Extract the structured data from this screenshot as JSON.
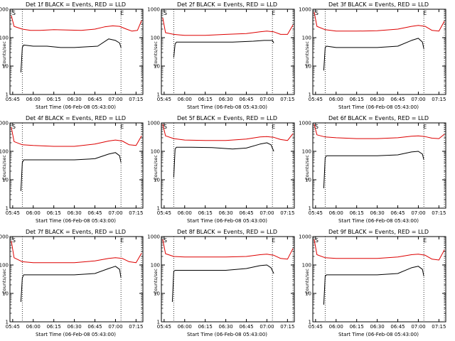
{
  "colors": {
    "events": "#000000",
    "lld": "#dd0000",
    "axes": "#000000"
  },
  "chart_data": [
    {
      "type": "line",
      "title": "Det 1f BLACK = Events, RED = LLD",
      "xlabel": "Start Time (06-Feb-08 05:43:00)",
      "ylabel": "Counts/sec",
      "xlim": [
        "05:43",
        "07:20"
      ],
      "ylim": [
        1,
        1000
      ],
      "yscale": "log",
      "x_tick_labels": [
        "05:45",
        "06:00",
        "06:15",
        "06:30",
        "06:45",
        "07:00",
        "07:15"
      ],
      "y_tick_labels": [
        "1",
        "10",
        "100",
        "1000"
      ],
      "markers": [
        {
          "label": "S",
          "x": "05:45"
        },
        {
          "label": "E",
          "x": "07:04"
        }
      ],
      "dotted_lines_at": [
        "05:52",
        "07:04",
        "07:19"
      ],
      "series": [
        {
          "x": [
            "05:44",
            "05:46",
            "05:52",
            "05:58",
            "06:05",
            "06:15",
            "06:25",
            "06:35",
            "06:45",
            "06:52",
            "06:58",
            "07:03",
            "07:08",
            "07:12",
            "07:16",
            "07:19"
          ],
          "values": [
            600,
            250,
            200,
            180,
            180,
            190,
            185,
            180,
            200,
            240,
            260,
            250,
            200,
            170,
            180,
            400
          ]
        },
        {
          "x": [
            "05:51",
            "05:52",
            "05:53",
            "06:00",
            "06:10",
            "06:20",
            "06:30",
            "06:40",
            "06:47",
            "06:55",
            "07:00",
            "07:03",
            "07:04"
          ],
          "values": [
            6,
            45,
            55,
            50,
            50,
            45,
            45,
            48,
            50,
            90,
            80,
            65,
            45
          ]
        }
      ]
    },
    {
      "type": "line",
      "title": "Det 2f BLACK = Events, RED = LLD",
      "xlabel": "Start Time (06-Feb-08 05:43:00)",
      "ylabel": "Counts/sec",
      "xlim": [
        "05:43",
        "07:20"
      ],
      "ylim": [
        1,
        1000
      ],
      "yscale": "log",
      "x_tick_labels": [
        "05:45",
        "06:00",
        "06:15",
        "06:30",
        "06:45",
        "07:00",
        "07:15"
      ],
      "y_tick_labels": [
        "1",
        "10",
        "100",
        "1000"
      ],
      "markers": [
        {
          "label": "S",
          "x": "05:45"
        },
        {
          "label": "E",
          "x": "07:04"
        }
      ],
      "dotted_lines_at": [
        "05:52",
        "07:04",
        "07:19"
      ],
      "series": [
        {
          "x": [
            "05:44",
            "05:46",
            "05:52",
            "06:00",
            "06:15",
            "06:30",
            "06:45",
            "06:55",
            "07:00",
            "07:05",
            "07:10",
            "07:15",
            "07:19"
          ],
          "values": [
            500,
            150,
            130,
            120,
            120,
            130,
            140,
            160,
            170,
            160,
            130,
            130,
            280
          ]
        },
        {
          "x": [
            "05:52",
            "05:53",
            "05:54",
            "06:05",
            "06:20",
            "06:35",
            "06:50",
            "06:58",
            "07:02",
            "07:04",
            "07:05"
          ],
          "values": [
            20,
            60,
            70,
            70,
            70,
            70,
            75,
            80,
            80,
            80,
            65
          ]
        }
      ]
    },
    {
      "type": "line",
      "title": "Det 3f BLACK = Events, RED = LLD",
      "xlabel": "Start Time (06-Feb-08 05:43:00)",
      "ylabel": "Counts/sec",
      "xlim": [
        "05:43",
        "07:20"
      ],
      "ylim": [
        1,
        1000
      ],
      "yscale": "log",
      "x_tick_labels": [
        "05:45",
        "06:00",
        "06:15",
        "06:30",
        "06:45",
        "07:00",
        "07:15"
      ],
      "y_tick_labels": [
        "1",
        "10",
        "100",
        "1000"
      ],
      "markers": [
        {
          "label": "S",
          "x": "05:45"
        },
        {
          "label": "E",
          "x": "07:04"
        }
      ],
      "dotted_lines_at": [
        "05:52",
        "07:04",
        "07:19"
      ],
      "series": [
        {
          "x": [
            "05:44",
            "05:46",
            "05:52",
            "06:00",
            "06:15",
            "06:30",
            "06:45",
            "06:55",
            "07:00",
            "07:05",
            "07:10",
            "07:15",
            "07:19"
          ],
          "values": [
            800,
            250,
            190,
            170,
            170,
            175,
            200,
            250,
            270,
            250,
            180,
            170,
            380
          ]
        },
        {
          "x": [
            "05:51",
            "05:52",
            "05:53",
            "06:00",
            "06:15",
            "06:30",
            "06:45",
            "06:55",
            "07:00",
            "07:03",
            "07:04"
          ],
          "values": [
            7,
            45,
            50,
            45,
            45,
            45,
            50,
            80,
            95,
            70,
            40
          ]
        }
      ]
    },
    {
      "type": "line",
      "title": "Det 4f BLACK = Events, RED = LLD",
      "xlabel": "Start Time (06-Feb-08 05:43:00)",
      "ylabel": "Counts/sec",
      "xlim": [
        "05:43",
        "07:20"
      ],
      "ylim": [
        1,
        1000
      ],
      "yscale": "log",
      "x_tick_labels": [
        "05:45",
        "06:00",
        "06:15",
        "06:30",
        "06:45",
        "07:00",
        "07:15"
      ],
      "y_tick_labels": [
        "1",
        "10",
        "100",
        "1000"
      ],
      "markers": [
        {
          "label": "S",
          "x": "05:45"
        },
        {
          "label": "E",
          "x": "07:04"
        }
      ],
      "dotted_lines_at": [
        "05:52",
        "07:04",
        "07:19"
      ],
      "series": [
        {
          "x": [
            "05:44",
            "05:46",
            "05:52",
            "06:00",
            "06:15",
            "06:30",
            "06:45",
            "06:55",
            "07:00",
            "07:05",
            "07:10",
            "07:15",
            "07:19"
          ],
          "values": [
            700,
            220,
            170,
            160,
            150,
            150,
            180,
            230,
            250,
            230,
            170,
            160,
            350
          ]
        },
        {
          "x": [
            "05:51",
            "05:52",
            "05:53",
            "06:00",
            "06:15",
            "06:30",
            "06:45",
            "06:55",
            "07:00",
            "07:03",
            "07:04"
          ],
          "values": [
            4,
            40,
            50,
            50,
            50,
            50,
            55,
            80,
            90,
            70,
            40
          ]
        }
      ]
    },
    {
      "type": "line",
      "title": "Det 5f BLACK = Events, RED = LLD",
      "xlabel": "Start Time (06-Feb-08 05:43:00)",
      "ylabel": "Counts/sec",
      "xlim": [
        "05:43",
        "07:20"
      ],
      "ylim": [
        1,
        1000
      ],
      "yscale": "log",
      "x_tick_labels": [
        "05:45",
        "06:00",
        "06:15",
        "06:30",
        "06:45",
        "07:00",
        "07:15"
      ],
      "y_tick_labels": [
        "1",
        "10",
        "100",
        "1000"
      ],
      "markers": [
        {
          "label": "S",
          "x": "05:45"
        },
        {
          "label": "E",
          "x": "07:04"
        }
      ],
      "dotted_lines_at": [
        "05:52",
        "07:04",
        "07:19"
      ],
      "series": [
        {
          "x": [
            "05:44",
            "05:46",
            "05:52",
            "06:00",
            "06:15",
            "06:30",
            "06:45",
            "06:55",
            "07:00",
            "07:05",
            "07:10",
            "07:15",
            "07:19"
          ],
          "values": [
            900,
            350,
            280,
            250,
            240,
            240,
            270,
            320,
            330,
            310,
            260,
            240,
            420
          ]
        },
        {
          "x": [
            "05:52",
            "05:53",
            "05:54",
            "06:05",
            "06:20",
            "06:35",
            "06:45",
            "06:55",
            "07:00",
            "07:03",
            "07:05"
          ],
          "values": [
            12,
            120,
            140,
            140,
            135,
            120,
            130,
            180,
            200,
            170,
            100
          ]
        }
      ]
    },
    {
      "type": "line",
      "title": "Det 6f BLACK = Events, RED = LLD",
      "xlabel": "Start Time (06-Feb-08 05:43:00)",
      "ylabel": "Counts/sec",
      "xlim": [
        "05:43",
        "07:20"
      ],
      "ylim": [
        1,
        1000
      ],
      "yscale": "log",
      "x_tick_labels": [
        "05:45",
        "06:00",
        "06:15",
        "06:30",
        "06:45",
        "07:00",
        "07:15"
      ],
      "y_tick_labels": [
        "1",
        "10",
        "100",
        "1000"
      ],
      "markers": [
        {
          "label": "S",
          "x": "05:45"
        },
        {
          "label": "E",
          "x": "07:04"
        }
      ],
      "dotted_lines_at": [
        "05:52",
        "07:04",
        "07:19"
      ],
      "series": [
        {
          "x": [
            "05:44",
            "05:46",
            "05:52",
            "06:00",
            "06:15",
            "06:30",
            "06:45",
            "06:55",
            "07:00",
            "07:05",
            "07:10",
            "07:15",
            "07:19"
          ],
          "values": [
            900,
            380,
            320,
            300,
            280,
            280,
            300,
            340,
            350,
            330,
            290,
            280,
            400
          ]
        },
        {
          "x": [
            "05:51",
            "05:52",
            "05:53",
            "06:00",
            "06:15",
            "06:30",
            "06:45",
            "06:55",
            "07:00",
            "07:03",
            "07:04"
          ],
          "values": [
            5,
            60,
            70,
            70,
            70,
            70,
            75,
            95,
            100,
            80,
            50
          ]
        }
      ]
    },
    {
      "type": "line",
      "title": "Det 7f BLACK = Events, RED = LLD",
      "xlabel": "Start Time (06-Feb-08 05:43:00)",
      "ylabel": "Counts/sec",
      "xlim": [
        "05:43",
        "07:20"
      ],
      "ylim": [
        1,
        1000
      ],
      "yscale": "log",
      "x_tick_labels": [
        "05:45",
        "06:00",
        "06:15",
        "06:30",
        "06:45",
        "07:00",
        "07:15"
      ],
      "y_tick_labels": [
        "1",
        "10",
        "100",
        "1000"
      ],
      "markers": [
        {
          "label": "S",
          "x": "05:45"
        },
        {
          "label": "E",
          "x": "07:04"
        }
      ],
      "dotted_lines_at": [
        "05:52",
        "07:04",
        "07:19"
      ],
      "series": [
        {
          "x": [
            "05:44",
            "05:46",
            "05:52",
            "06:00",
            "06:15",
            "06:30",
            "06:45",
            "06:55",
            "07:00",
            "07:05",
            "07:10",
            "07:15",
            "07:19"
          ],
          "values": [
            700,
            180,
            130,
            120,
            120,
            120,
            140,
            170,
            180,
            170,
            130,
            120,
            260
          ]
        },
        {
          "x": [
            "05:51",
            "05:52",
            "05:53",
            "06:00",
            "06:15",
            "06:30",
            "06:45",
            "06:55",
            "07:00",
            "07:03",
            "07:04"
          ],
          "values": [
            5,
            35,
            45,
            45,
            45,
            45,
            50,
            75,
            90,
            70,
            35
          ]
        }
      ]
    },
    {
      "type": "line",
      "title": "Det 8f BLACK = Events, RED = LLD",
      "xlabel": "Start Time (06-Feb-08 05:43:00)",
      "ylabel": "Counts/sec",
      "xlim": [
        "05:43",
        "07:20"
      ],
      "ylim": [
        1,
        1000
      ],
      "yscale": "log",
      "x_tick_labels": [
        "05:45",
        "06:00",
        "06:15",
        "06:30",
        "06:45",
        "07:00",
        "07:15"
      ],
      "y_tick_labels": [
        "1",
        "10",
        "100",
        "1000"
      ],
      "markers": [
        {
          "label": "S",
          "x": "05:45"
        },
        {
          "label": "E",
          "x": "07:04"
        }
      ],
      "dotted_lines_at": [
        "05:52",
        "07:04",
        "07:19"
      ],
      "series": [
        {
          "x": [
            "05:44",
            "05:46",
            "05:52",
            "06:00",
            "06:15",
            "06:30",
            "06:45",
            "06:55",
            "07:00",
            "07:05",
            "07:10",
            "07:15",
            "07:19"
          ],
          "values": [
            800,
            250,
            200,
            190,
            190,
            190,
            200,
            230,
            240,
            220,
            170,
            160,
            380
          ]
        },
        {
          "x": [
            "05:51",
            "05:52",
            "05:53",
            "06:00",
            "06:15",
            "06:30",
            "06:45",
            "06:55",
            "07:00",
            "07:03",
            "07:05"
          ],
          "values": [
            5,
            60,
            65,
            65,
            65,
            65,
            75,
            95,
            100,
            80,
            50
          ]
        }
      ]
    },
    {
      "type": "line",
      "title": "Det 9f BLACK = Events, RED = LLD",
      "xlabel": "Start Time (06-Feb-08 05:43:00)",
      "ylabel": "Counts/sec",
      "xlim": [
        "05:43",
        "07:20"
      ],
      "ylim": [
        1,
        1000
      ],
      "yscale": "log",
      "x_tick_labels": [
        "05:45",
        "06:00",
        "06:15",
        "06:30",
        "06:45",
        "07:00",
        "07:15"
      ],
      "y_tick_labels": [
        "1",
        "10",
        "100",
        "1000"
      ],
      "markers": [
        {
          "label": "S",
          "x": "05:45"
        },
        {
          "label": "E",
          "x": "07:04"
        }
      ],
      "dotted_lines_at": [
        "05:52",
        "07:04",
        "07:19"
      ],
      "series": [
        {
          "x": [
            "05:44",
            "05:46",
            "05:52",
            "06:00",
            "06:15",
            "06:30",
            "06:45",
            "06:55",
            "07:00",
            "07:05",
            "07:10",
            "07:15",
            "07:19"
          ],
          "values": [
            800,
            230,
            180,
            170,
            170,
            170,
            190,
            230,
            240,
            220,
            160,
            150,
            340
          ]
        },
        {
          "x": [
            "05:51",
            "05:52",
            "05:53",
            "06:00",
            "06:15",
            "06:30",
            "06:45",
            "06:55",
            "07:00",
            "07:03",
            "07:04"
          ],
          "values": [
            4,
            40,
            45,
            45,
            45,
            45,
            50,
            80,
            90,
            70,
            40
          ]
        }
      ]
    }
  ]
}
